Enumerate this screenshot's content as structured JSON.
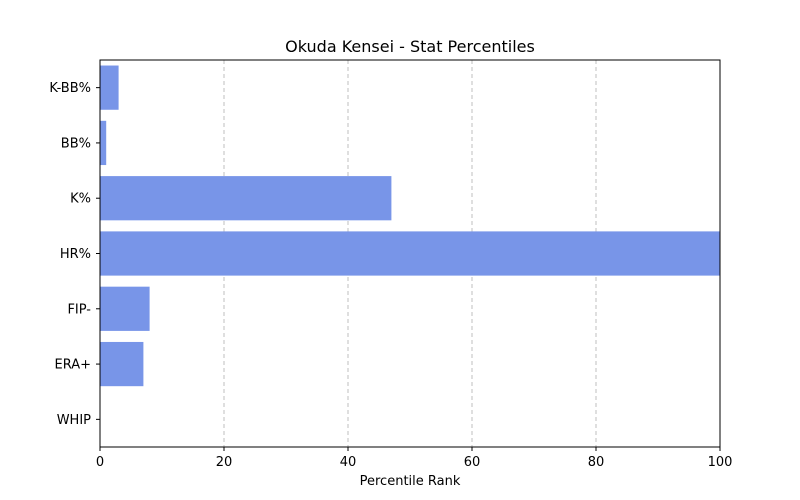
{
  "chart_data": {
    "type": "bar",
    "orientation": "horizontal",
    "title": "Okuda Kensei - Stat Percentiles",
    "xlabel": "Percentile Rank",
    "ylabel": "",
    "categories": [
      "K-BB%",
      "BB%",
      "K%",
      "HR%",
      "FIP-",
      "ERA+",
      "WHIP"
    ],
    "values": [
      3,
      1,
      47,
      100,
      8,
      7,
      0
    ],
    "xlim": [
      0,
      100
    ],
    "xticks": [
      0,
      20,
      40,
      60,
      80,
      100
    ],
    "grid": "x, dashed",
    "bar_color": "#7895e8"
  }
}
